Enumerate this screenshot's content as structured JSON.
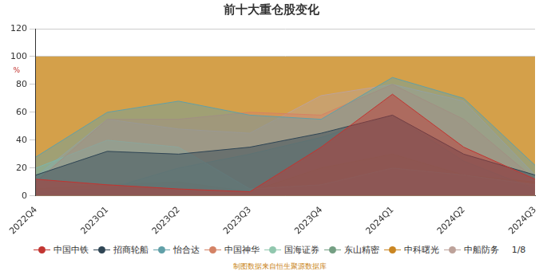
{
  "chart_data": {
    "type": "area",
    "title": "前十大重仓股变化",
    "y_label": "%",
    "source": "制图数据来自恒生聚源数据库",
    "legend_page": "1/8",
    "categories": [
      "2022Q4",
      "2023Q1",
      "2023Q2",
      "2023Q3",
      "2023Q4",
      "2024Q1",
      "2024Q2",
      "2024Q3"
    ],
    "ylim": [
      0,
      120
    ],
    "yticks": [
      0,
      20,
      40,
      60,
      80,
      100,
      120
    ],
    "grid": true,
    "legend": "bottom",
    "band": {
      "ylim": [
        0,
        100
      ],
      "color": "#d4a04a"
    },
    "series": [
      {
        "name": "中国中铁",
        "color": "#c23531",
        "values": [
          12,
          8,
          5,
          3,
          35,
          73,
          35,
          12
        ]
      },
      {
        "name": "招商轮船",
        "color": "#2f4554",
        "values": [
          15,
          32,
          30,
          35,
          45,
          58,
          30,
          15
        ]
      },
      {
        "name": "怡合达",
        "color": "#61a0a8",
        "values": [
          28,
          60,
          68,
          58,
          55,
          85,
          70,
          22
        ]
      },
      {
        "name": "中国神华",
        "color": "#d48265",
        "values": [
          10,
          55,
          55,
          60,
          58,
          80,
          55,
          12
        ]
      },
      {
        "name": "国海证券",
        "color": "#91c7ae",
        "values": [
          20,
          40,
          35,
          5,
          8,
          20,
          15,
          8
        ]
      },
      {
        "name": "东山精密",
        "color": "#749f83",
        "values": [
          3,
          5,
          20,
          30,
          42,
          58,
          25,
          5
        ]
      },
      {
        "name": "中科曙光",
        "color": "#ca8622",
        "values": [
          5,
          8,
          10,
          3,
          20,
          30,
          15,
          10
        ]
      },
      {
        "name": "中船防务",
        "color": "#bda29a",
        "values": [
          14,
          55,
          48,
          45,
          72,
          80,
          68,
          15
        ]
      }
    ]
  }
}
